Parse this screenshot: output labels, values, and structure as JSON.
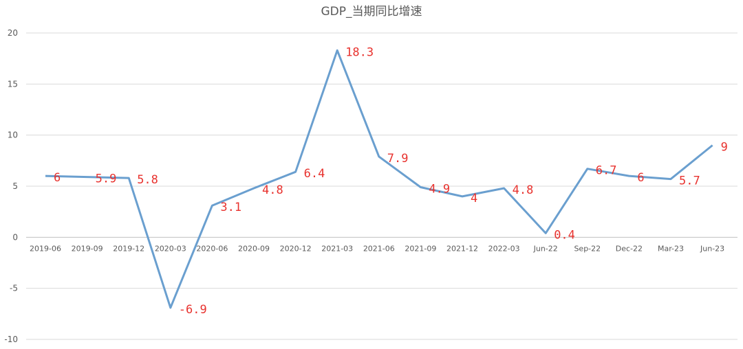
{
  "chart_data": {
    "type": "line",
    "title": "GDP_当期同比增速",
    "categories": [
      "2019-06",
      "2019-09",
      "2019-12",
      "2020-03",
      "2020-06",
      "2020-09",
      "2020-12",
      "2021-03",
      "2021-06",
      "2021-09",
      "2021-12",
      "2022-03",
      "Jun-22",
      "Sep-22",
      "Dec-22",
      "Mar-23",
      "Jun-23"
    ],
    "series": [
      {
        "values": [
          6,
          5.9,
          5.8,
          -6.9,
          3.1,
          4.8,
          6.4,
          18.3,
          7.9,
          4.9,
          4,
          4.8,
          0.4,
          6.7,
          6,
          5.7,
          9
        ]
      }
    ],
    "data_labels": [
      "6",
      "5.9",
      "5.8",
      "-6.9",
      "3.1",
      "4.8",
      "6.4",
      "18.3",
      "7.9",
      "4.9",
      "4",
      "4.8",
      "0.4",
      "6.7",
      "6",
      "5.7",
      "9"
    ],
    "ylim": [
      -10,
      20
    ],
    "yticks": [
      "20",
      "15",
      "10",
      "5",
      "0",
      "-5",
      "-10"
    ],
    "xlabel": "",
    "ylabel": "",
    "grid": true,
    "legend": "none",
    "colors": {
      "line": "#6a9fcf",
      "labels": "#e8322e",
      "grid": "#d9d9d9",
      "text": "#595959"
    }
  }
}
